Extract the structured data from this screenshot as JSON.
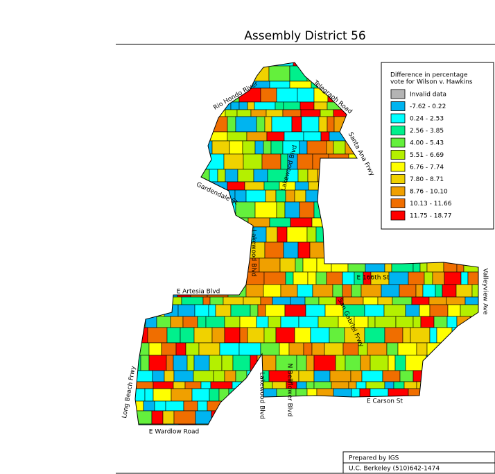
{
  "title": "Assembly District 56",
  "legend": {
    "title": [
      "Difference in percentage",
      "vote for Wilson v. Hawkins"
    ],
    "items": [
      {
        "label": "Invalid data",
        "color": "#b4b4b4"
      },
      {
        "label": "-7.62 -  0.22",
        "color": "#00b4f0"
      },
      {
        "label": "0.24 -  2.53",
        "color": "#00ffff"
      },
      {
        "label": "2.56 -  3.85",
        "color": "#00f08c"
      },
      {
        "label": "4.00 -  5.43",
        "color": "#64f03c"
      },
      {
        "label": "5.51 -  6.69",
        "color": "#b4f000"
      },
      {
        "label": "6.76 -  7.74",
        "color": "#ffff00"
      },
      {
        "label": "7.80 -  8.71",
        "color": "#f0d200"
      },
      {
        "label": "8.76 - 10.10",
        "color": "#f0a000"
      },
      {
        "label": "10.13 - 11.66",
        "color": "#f06e00"
      },
      {
        "label": "11.75 - 18.77",
        "color": "#ff0000"
      }
    ]
  },
  "streets": [
    "Rio Hondo River",
    "Telegraph Road",
    "Santa Ana Frwy",
    "Lakewood Blvd",
    "Gardendale St",
    "Lakewood Blvd",
    "E 166th St",
    "Valleyview Ave",
    "E Artesia Blvd",
    "San Gabriel Frwy",
    "Long Beach Frwy",
    "Lakewood Blvd",
    "N Bellflower Blvd",
    "E Carson St",
    "E Wardlow Road"
  ],
  "footer": [
    "Prepared by IGS",
    "U.C. Berkeley (510)642-1474"
  ]
}
